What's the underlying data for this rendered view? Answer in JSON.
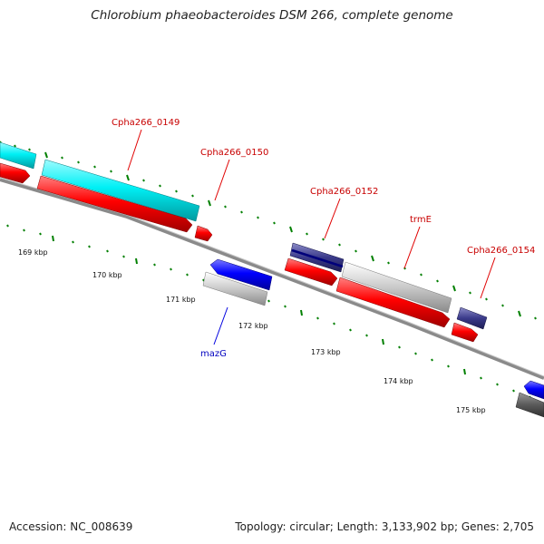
{
  "title": "Chlorobium phaeobacteroides DSM 266, complete genome",
  "footer": {
    "accession": "Accession: NC_008639",
    "summary": "Topology: circular; Length: 3,133,902 bp; Genes: 2,705"
  },
  "colors": {
    "forward_cds": "#ff0000",
    "reverse_cds": "#0000ff",
    "tRNA_or_other": "#00ffff",
    "pseudo_or_unknown": "#c0c0c0",
    "dark_feature": "#3b3b8c",
    "backbone": "#888888",
    "ticks": "#008000"
  },
  "genome_map": {
    "tick_labels": [
      "169 kbp",
      "170 kbp",
      "171 kbp",
      "172 kbp",
      "173 kbp",
      "174 kbp",
      "175 kbp"
    ],
    "gene_labels": [
      {
        "text": "Cpha266_0149",
        "color": "red"
      },
      {
        "text": "Cpha266_0150",
        "color": "red"
      },
      {
        "text": "Cpha266_0152",
        "color": "red"
      },
      {
        "text": "trmE",
        "color": "red"
      },
      {
        "text": "Cpha266_0154",
        "color": "red"
      },
      {
        "text": "mazG",
        "color": "blue"
      }
    ]
  }
}
